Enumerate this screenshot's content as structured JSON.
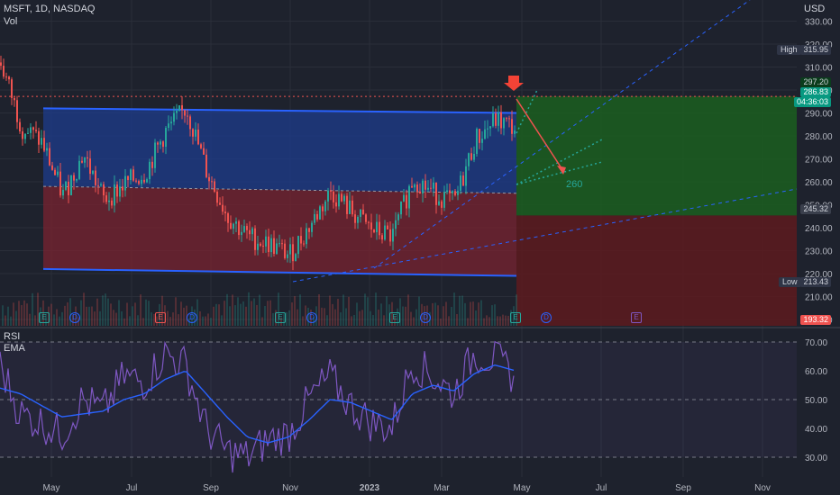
{
  "header": {
    "symbol": "MSFT, 1D, NASDAQ",
    "vol_label": "Vol",
    "currency": "USD",
    "rsi_label": "RSI",
    "ema_label": "EMA"
  },
  "price_axis": {
    "ticks": [
      "330.00",
      "320.00",
      "310.00",
      "300.00",
      "290.00",
      "280.00",
      "270.00",
      "260.00",
      "250.00",
      "240.00",
      "230.00",
      "220.00",
      "210.00",
      "200.00"
    ],
    "high_label": "High",
    "high_value": "315.95",
    "low_label": "Low",
    "low_value": "213.43",
    "last_price": "297.20",
    "current_price": "286.83",
    "countdown": "04:36:03",
    "stop_value": "245.32",
    "bottom_value": "193.32"
  },
  "rsi_axis": {
    "ticks": [
      "70.00",
      "60.00",
      "50.00",
      "40.00",
      "30.00"
    ]
  },
  "time_axis": {
    "labels": [
      "May",
      "Jul",
      "Sep",
      "Nov",
      "2023",
      "Mar",
      "May",
      "Jul",
      "Sep",
      "Nov"
    ]
  },
  "annotation": {
    "target_label": "260"
  },
  "events": [
    "E",
    "D",
    "E",
    "D",
    "E",
    "D",
    "E",
    "D",
    "E",
    "D",
    "E"
  ],
  "colors": {
    "up": "#26a69a",
    "down": "#ef5350",
    "channel_top": "#1e3c8c",
    "channel_bottom": "#7a2330",
    "rsi": "#7e57c2",
    "ema": "#2962ff",
    "profit": "#1b5e20",
    "loss": "#5d1a1f"
  },
  "chart_data": [
    {
      "type": "candlestick",
      "title": "MSFT, 1D, NASDAQ",
      "xlabel": "",
      "ylabel": "USD",
      "ylim": [
        193,
        335
      ],
      "x": [
        "2022-04-01",
        "2022-04-15",
        "2022-05-01",
        "2022-05-15",
        "2022-06-01",
        "2022-06-15",
        "2022-07-01",
        "2022-07-15",
        "2022-08-01",
        "2022-08-15",
        "2022-09-01",
        "2022-09-15",
        "2022-10-01",
        "2022-10-15",
        "2022-11-01",
        "2022-11-15",
        "2022-12-01",
        "2022-12-15",
        "2023-01-01",
        "2023-01-15",
        "2023-02-01",
        "2023-02-15",
        "2023-03-01",
        "2023-03-15",
        "2023-04-01",
        "2023-04-25"
      ],
      "close": [
        312,
        284,
        277,
        254,
        272,
        252,
        259,
        264,
        282,
        292,
        264,
        245,
        236,
        233,
        228,
        241,
        256,
        247,
        239,
        236,
        262,
        255,
        251,
        278,
        287,
        283
      ],
      "channel": {
        "upper_start": 292,
        "upper_end": 290,
        "mid_start": 258,
        "mid_end": 255,
        "lower_start": 222,
        "lower_end": 219
      },
      "position": {
        "entry": 297.2,
        "target": 245.32
      },
      "high": 315.95,
      "low": 213.43
    },
    {
      "type": "line",
      "title": "RSI",
      "ylim": [
        25,
        75
      ],
      "series": [
        {
          "name": "RSI",
          "values": [
            62,
            45,
            42,
            38,
            50,
            46,
            58,
            56,
            66,
            62,
            40,
            32,
            30,
            36,
            38,
            50,
            58,
            48,
            42,
            40,
            63,
            58,
            52,
            66,
            64,
            58
          ]
        },
        {
          "name": "EMA",
          "values": [
            54,
            52,
            48,
            44,
            45,
            46,
            50,
            52,
            57,
            60,
            52,
            44,
            37,
            35,
            37,
            43,
            50,
            49,
            46,
            43,
            52,
            55,
            53,
            59,
            62,
            60
          ]
        }
      ]
    }
  ]
}
